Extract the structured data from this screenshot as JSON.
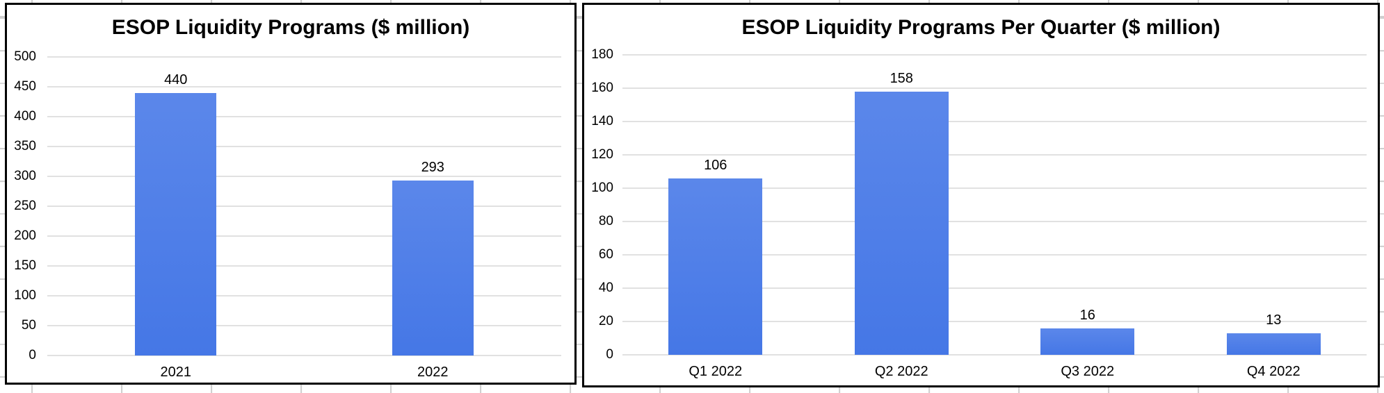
{
  "sheet": {
    "background_color": "#ffffff",
    "cell_gridline_color": "#cfcfcf"
  },
  "chart_style": {
    "bar_color_top": "#5b87ea",
    "bar_color_bottom": "#4577e6",
    "plot_gridline_color": "#e1e1e1",
    "border_color": "#000000",
    "text_color": "#000000"
  },
  "chart_data": [
    {
      "type": "bar",
      "title": "ESOP Liquidity Programs ($ million)",
      "categories": [
        "2021",
        "2022"
      ],
      "values": [
        440,
        293
      ],
      "value_labels": [
        "440",
        "293"
      ],
      "xlabel": "",
      "ylabel": "",
      "ylim": [
        0,
        500
      ],
      "ytick_step": 50,
      "ytick_labels": [
        "0",
        "50",
        "100",
        "150",
        "200",
        "250",
        "300",
        "350",
        "400",
        "450",
        "500"
      ],
      "grid": "horizontal",
      "legend": "none"
    },
    {
      "type": "bar",
      "title": "ESOP Liquidity Programs Per Quarter ($ million)",
      "categories": [
        "Q1 2022",
        "Q2 2022",
        "Q3 2022",
        "Q4 2022"
      ],
      "values": [
        106,
        158,
        16,
        13
      ],
      "value_labels": [
        "106",
        "158",
        "16",
        "13"
      ],
      "xlabel": "",
      "ylabel": "",
      "ylim": [
        0,
        180
      ],
      "ytick_step": 20,
      "ytick_labels": [
        "0",
        "20",
        "40",
        "60",
        "80",
        "100",
        "120",
        "140",
        "160",
        "180"
      ],
      "grid": "horizontal",
      "legend": "none"
    }
  ]
}
